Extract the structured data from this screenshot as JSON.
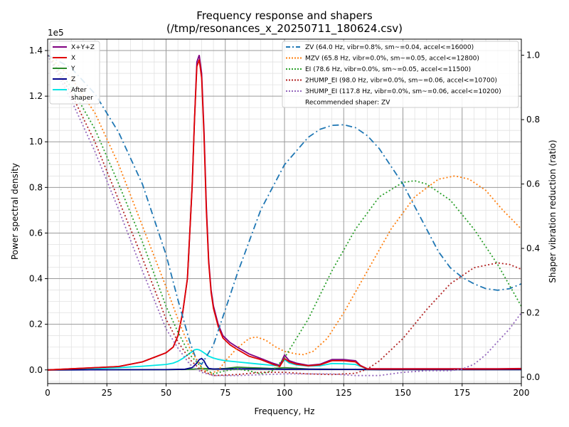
{
  "chart_data": {
    "type": "line",
    "title": "Frequency response and shapers",
    "subtitle": "(/tmp/resonances_x_20250711_180624.csv)",
    "xlabel": "Frequency, Hz",
    "ylabel": "Power spectral density",
    "y2label": "Shaper vibration reduction (ratio)",
    "y_offset_text": "1e5",
    "xlim": [
      0,
      200
    ],
    "ylim": [
      -0.06,
      1.45
    ],
    "y2lim": [
      -0.02,
      1.05
    ],
    "xticks": [
      0,
      25,
      50,
      75,
      100,
      125,
      150,
      175,
      200
    ],
    "yticks": [
      0.0,
      0.2,
      0.4,
      0.6,
      0.8,
      1.0,
      1.2,
      1.4
    ],
    "y2ticks": [
      0.0,
      0.2,
      0.4,
      0.6,
      0.8,
      1.0
    ],
    "grid": true,
    "legend_left_position": "top-left",
    "legend_right_position": "top-right",
    "recommended_text": "Recommended shaper: ZV",
    "psd_series": [
      {
        "name": "X+Y+Z",
        "color": "#800080",
        "x": [
          0,
          10,
          20,
          30,
          40,
          45,
          50,
          53,
          55,
          57,
          59,
          61,
          62,
          63,
          64,
          65,
          66,
          67,
          68,
          69,
          70,
          72,
          74,
          77,
          80,
          85,
          90,
          95,
          98,
          100,
          102,
          105,
          110,
          115,
          120,
          125,
          130,
          132,
          135,
          140,
          150,
          160,
          170,
          180,
          190,
          200
        ],
        "y": [
          0.0,
          0.005,
          0.01,
          0.015,
          0.035,
          0.055,
          0.075,
          0.1,
          0.15,
          0.25,
          0.4,
          0.8,
          1.1,
          1.35,
          1.38,
          1.3,
          1.05,
          0.72,
          0.48,
          0.35,
          0.28,
          0.2,
          0.15,
          0.12,
          0.1,
          0.07,
          0.05,
          0.03,
          0.02,
          0.065,
          0.04,
          0.03,
          0.02,
          0.025,
          0.045,
          0.045,
          0.04,
          0.02,
          0.005,
          0.005,
          0.005,
          0.005,
          0.005,
          0.005,
          0.005,
          0.006
        ]
      },
      {
        "name": "X",
        "color": "#e00000",
        "x": [
          0,
          10,
          20,
          30,
          40,
          45,
          50,
          53,
          55,
          57,
          59,
          61,
          62,
          63,
          64,
          65,
          66,
          67,
          68,
          69,
          70,
          72,
          74,
          77,
          80,
          85,
          90,
          95,
          98,
          100,
          102,
          105,
          110,
          115,
          120,
          125,
          130,
          132,
          135,
          140,
          150,
          160,
          170,
          180,
          190,
          200
        ],
        "y": [
          0.0,
          0.005,
          0.01,
          0.015,
          0.035,
          0.055,
          0.075,
          0.1,
          0.15,
          0.25,
          0.4,
          0.8,
          1.1,
          1.33,
          1.36,
          1.28,
          1.03,
          0.7,
          0.47,
          0.34,
          0.27,
          0.19,
          0.14,
          0.11,
          0.09,
          0.06,
          0.045,
          0.025,
          0.015,
          0.05,
          0.035,
          0.025,
          0.018,
          0.022,
          0.04,
          0.04,
          0.035,
          0.018,
          0.004,
          0.004,
          0.004,
          0.004,
          0.004,
          0.004,
          0.004,
          0.005
        ]
      },
      {
        "name": "Y",
        "color": "#2a8a2a",
        "x": [
          0,
          50,
          58,
          62,
          64,
          66,
          68,
          70,
          75,
          80,
          85,
          90,
          95,
          100,
          105,
          110,
          120,
          130,
          140,
          200
        ],
        "y": [
          0.0,
          0.001,
          0.002,
          0.004,
          0.006,
          0.006,
          0.005,
          0.004,
          0.006,
          0.012,
          0.01,
          0.008,
          0.006,
          0.01,
          0.007,
          0.004,
          0.003,
          0.002,
          0.001,
          0.001
        ]
      },
      {
        "name": "Z",
        "color": "#00008b",
        "x": [
          0,
          50,
          58,
          61,
          63,
          64,
          65,
          66,
          67,
          68,
          70,
          75,
          80,
          90,
          100,
          110,
          120,
          130,
          140,
          200
        ],
        "y": [
          0.0,
          0.001,
          0.003,
          0.01,
          0.03,
          0.045,
          0.05,
          0.04,
          0.02,
          0.006,
          0.004,
          0.004,
          0.005,
          0.004,
          0.003,
          0.003,
          0.002,
          0.002,
          0.001,
          0.001
        ]
      },
      {
        "name": "After\nshaper",
        "color": "#00e5e5",
        "x": [
          0,
          10,
          20,
          30,
          40,
          45,
          50,
          53,
          55,
          57,
          59,
          61,
          62,
          63,
          64,
          65,
          66,
          67,
          68,
          70,
          72,
          75,
          80,
          85,
          90,
          95,
          98,
          100,
          102,
          105,
          110,
          115,
          120,
          125,
          130,
          133,
          135,
          140,
          150,
          200
        ],
        "y": [
          0.0,
          0.003,
          0.006,
          0.01,
          0.016,
          0.02,
          0.024,
          0.03,
          0.038,
          0.05,
          0.065,
          0.08,
          0.088,
          0.09,
          0.088,
          0.082,
          0.075,
          0.068,
          0.06,
          0.052,
          0.046,
          0.04,
          0.035,
          0.03,
          0.025,
          0.02,
          0.018,
          0.045,
          0.03,
          0.022,
          0.017,
          0.018,
          0.028,
          0.027,
          0.024,
          0.012,
          0.004,
          0.003,
          0.003,
          0.003
        ]
      }
    ],
    "shaper_series": [
      {
        "name": "ZV (64.0 Hz, vibr=0.8%, sm~=0.04, accel<=16000)",
        "color": "#1f77b4",
        "dash": "dashdot",
        "x": [
          0,
          10,
          20,
          30,
          40,
          50,
          55,
          60,
          63,
          65,
          70,
          75,
          80,
          90,
          100,
          110,
          115,
          120,
          125,
          130,
          135,
          140,
          150,
          160,
          165,
          170,
          175,
          180,
          185,
          190,
          195,
          200
        ],
        "y": [
          1.0,
          0.96,
          0.88,
          0.76,
          0.6,
          0.38,
          0.24,
          0.11,
          0.05,
          0.04,
          0.1,
          0.21,
          0.32,
          0.52,
          0.66,
          0.745,
          0.77,
          0.782,
          0.784,
          0.775,
          0.75,
          0.71,
          0.6,
          0.46,
          0.39,
          0.34,
          0.31,
          0.29,
          0.275,
          0.27,
          0.275,
          0.29
        ]
      },
      {
        "name": "MZV (65.8 Hz, vibr=0.0%, sm~=0.05, accel<=12800)",
        "color": "#ff7f0e",
        "dash": "dotted",
        "x": [
          0,
          10,
          20,
          30,
          40,
          50,
          55,
          60,
          65,
          68,
          72,
          75,
          80,
          85,
          88,
          92,
          96,
          100,
          105,
          108,
          112,
          118,
          125,
          135,
          145,
          155,
          165,
          172,
          178,
          185,
          192,
          200
        ],
        "y": [
          1.0,
          0.93,
          0.82,
          0.66,
          0.47,
          0.28,
          0.18,
          0.09,
          0.03,
          0.01,
          0.02,
          0.05,
          0.09,
          0.12,
          0.125,
          0.115,
          0.095,
          0.08,
          0.072,
          0.07,
          0.08,
          0.12,
          0.2,
          0.33,
          0.46,
          0.56,
          0.615,
          0.625,
          0.615,
          0.58,
          0.52,
          0.46
        ]
      },
      {
        "name": "EI (78.6 Hz, vibr=0.0%, sm~=0.05, accel<=11500)",
        "color": "#2ca02c",
        "dash": "dotted",
        "x": [
          0,
          10,
          20,
          30,
          40,
          50,
          55,
          60,
          65,
          70,
          75,
          80,
          85,
          90,
          95,
          100,
          110,
          120,
          130,
          140,
          150,
          155,
          160,
          170,
          180,
          190,
          200
        ],
        "y": [
          1.0,
          0.9,
          0.77,
          0.6,
          0.42,
          0.22,
          0.14,
          0.07,
          0.03,
          0.01,
          0.02,
          0.025,
          0.02,
          0.01,
          0.02,
          0.06,
          0.18,
          0.33,
          0.46,
          0.56,
          0.605,
          0.61,
          0.6,
          0.55,
          0.46,
          0.35,
          0.22
        ]
      },
      {
        "name": "2HUMP_EI (98.0 Hz, vibr=0.0%, sm~=0.06, accel<=10700)",
        "color": "#b22222",
        "dash": "dotted",
        "x": [
          0,
          10,
          20,
          30,
          40,
          50,
          55,
          60,
          65,
          70,
          80,
          90,
          100,
          110,
          120,
          130,
          135,
          140,
          150,
          160,
          170,
          180,
          190,
          195,
          200
        ],
        "y": [
          1.0,
          0.88,
          0.73,
          0.55,
          0.37,
          0.18,
          0.11,
          0.055,
          0.02,
          0.005,
          0.008,
          0.015,
          0.015,
          0.01,
          0.008,
          0.012,
          0.025,
          0.05,
          0.12,
          0.21,
          0.29,
          0.34,
          0.355,
          0.35,
          0.335
        ]
      },
      {
        "name": "3HUMP_EI (117.8 Hz, vibr=0.0%, sm~=0.06, accel<=10200)",
        "color": "#9467bd",
        "dash": "dotted",
        "x": [
          0,
          10,
          20,
          30,
          40,
          50,
          55,
          60,
          65,
          70,
          80,
          100,
          120,
          130,
          140,
          150,
          160,
          170,
          175,
          180,
          185,
          190,
          195,
          200
        ],
        "y": [
          1.0,
          0.86,
          0.7,
          0.52,
          0.33,
          0.15,
          0.09,
          0.04,
          0.015,
          0.005,
          0.005,
          0.01,
          0.01,
          0.005,
          0.005,
          0.015,
          0.02,
          0.02,
          0.025,
          0.04,
          0.07,
          0.11,
          0.15,
          0.2
        ]
      }
    ]
  }
}
